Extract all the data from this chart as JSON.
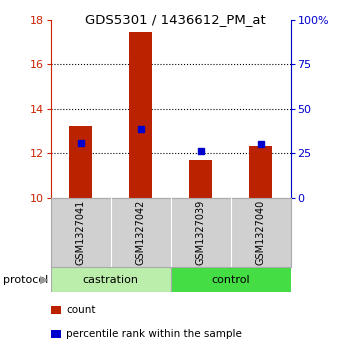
{
  "title": "GDS5301 / 1436612_PM_at",
  "samples": [
    "GSM1327041",
    "GSM1327042",
    "GSM1327039",
    "GSM1327040"
  ],
  "bar_values": [
    13.25,
    17.45,
    11.72,
    12.32
  ],
  "percentile_values": [
    12.45,
    13.1,
    12.1,
    12.4
  ],
  "bar_color": "#bb2200",
  "percentile_color": "#0000cc",
  "ylim_left": [
    10,
    18
  ],
  "ylim_right": [
    0,
    100
  ],
  "yticks_left": [
    10,
    12,
    14,
    16,
    18
  ],
  "yticks_right": [
    0,
    25,
    50,
    75,
    100
  ],
  "protocol_groups": [
    {
      "label": "castration",
      "indices": [
        0,
        1
      ]
    },
    {
      "label": "control",
      "indices": [
        2,
        3
      ]
    }
  ],
  "protocol_label": "protocol",
  "legend_items": [
    {
      "color": "#bb2200",
      "label": "count"
    },
    {
      "color": "#0000cc",
      "label": "percentile rank within the sample"
    }
  ],
  "bg_color": "#ffffff",
  "plot_bg": "#ffffff",
  "sample_box_color": "#d0d0d0",
  "protocol_castration_color": "#bbeeaa",
  "protocol_control_color": "#44dd44",
  "left_axis_color": "#cc2200",
  "right_axis_color": "#0000cc"
}
